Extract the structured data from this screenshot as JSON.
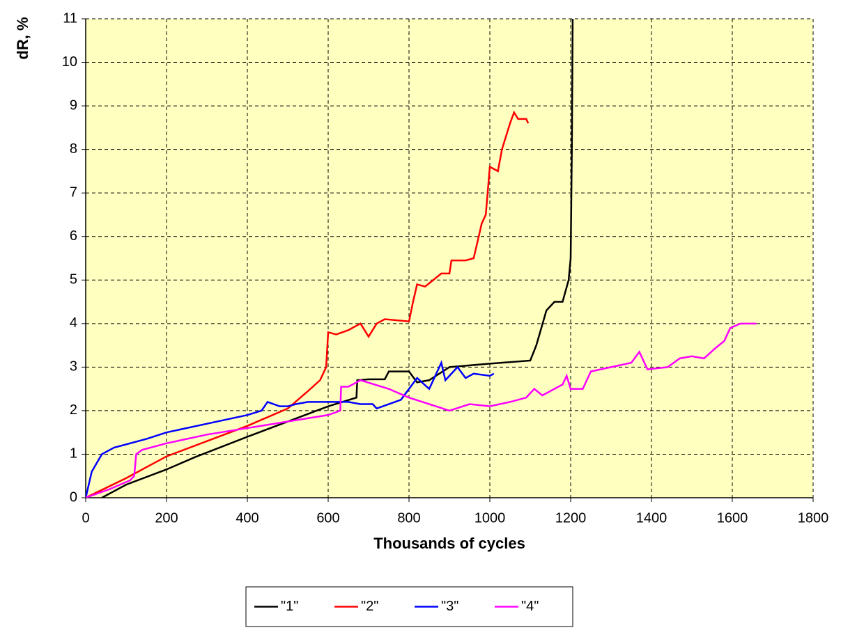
{
  "chart_data": {
    "type": "line",
    "x_label": "Thousands of cycles",
    "y_label": "dR, %",
    "xlim": [
      0,
      1800
    ],
    "xticks": [
      0,
      200,
      400,
      600,
      800,
      1000,
      1200,
      1400,
      1600,
      1800
    ],
    "ylim": [
      0,
      11
    ],
    "yticks": [
      0,
      1,
      2,
      3,
      4,
      5,
      6,
      7,
      8,
      9,
      10,
      11
    ],
    "grid": true,
    "legend": "bottom",
    "series": [
      {
        "name": "\"1\"",
        "color": "#000000",
        "x": [
          40,
          100,
          200,
          270,
          400,
          500,
          600,
          670,
          672,
          700,
          740,
          750,
          800,
          820,
          850,
          900,
          1000,
          1100,
          1115,
          1140,
          1160,
          1180,
          1195,
          1200,
          1203,
          1205
        ],
        "values": [
          0,
          0.3,
          0.65,
          0.93,
          1.4,
          1.75,
          2.1,
          2.3,
          2.7,
          2.72,
          2.72,
          2.9,
          2.9,
          2.65,
          2.7,
          3.0,
          3.08,
          3.15,
          3.5,
          4.3,
          4.5,
          4.5,
          5.0,
          5.5,
          8,
          11
        ]
      },
      {
        "name": "\"2\"",
        "color": "#ff0000",
        "x": [
          0,
          100,
          200,
          300,
          400,
          500,
          550,
          580,
          595,
          600,
          620,
          650,
          680,
          700,
          720,
          740,
          800,
          810,
          820,
          840,
          860,
          880,
          900,
          905,
          940,
          960,
          980,
          990,
          1000,
          1020,
          1030,
          1050,
          1060,
          1070,
          1090,
          1095
        ],
        "values": [
          0,
          0.45,
          0.95,
          1.3,
          1.65,
          2.05,
          2.45,
          2.7,
          3.0,
          3.8,
          3.75,
          3.85,
          4.0,
          3.7,
          4.0,
          4.1,
          4.05,
          4.5,
          4.9,
          4.85,
          5.0,
          5.15,
          5.15,
          5.45,
          5.45,
          5.5,
          6.3,
          6.5,
          7.6,
          7.5,
          8.0,
          8.6,
          8.85,
          8.7,
          8.7,
          8.6
        ]
      },
      {
        "name": "\"3\"",
        "color": "#0000ff",
        "x": [
          0,
          15,
          40,
          70,
          150,
          200,
          300,
          400,
          435,
          450,
          480,
          500,
          520,
          550,
          650,
          680,
          710,
          720,
          780,
          820,
          850,
          880,
          890,
          920,
          940,
          960,
          1000,
          1010
        ],
        "values": [
          0,
          0.6,
          1.0,
          1.15,
          1.35,
          1.5,
          1.7,
          1.9,
          2.0,
          2.2,
          2.1,
          2.1,
          2.15,
          2.2,
          2.2,
          2.15,
          2.15,
          2.05,
          2.25,
          2.75,
          2.5,
          3.1,
          2.7,
          3.0,
          2.75,
          2.85,
          2.8,
          2.85
        ]
      },
      {
        "name": "\"4\"",
        "color": "#ff00ff",
        "x": [
          0,
          60,
          110,
          120,
          125,
          140,
          200,
          300,
          400,
          500,
          600,
          630,
          632,
          650,
          680,
          750,
          800,
          900,
          950,
          1000,
          1050,
          1090,
          1110,
          1130,
          1180,
          1190,
          1200,
          1230,
          1250,
          1300,
          1350,
          1370,
          1390,
          1440,
          1470,
          1500,
          1530,
          1560,
          1580,
          1595,
          1620,
          1660
        ],
        "values": [
          0,
          0.2,
          0.4,
          0.5,
          1.0,
          1.1,
          1.25,
          1.45,
          1.6,
          1.75,
          1.9,
          2.0,
          2.55,
          2.55,
          2.7,
          2.5,
          2.3,
          2.0,
          2.15,
          2.1,
          2.2,
          2.3,
          2.5,
          2.35,
          2.6,
          2.8,
          2.5,
          2.5,
          2.9,
          3.0,
          3.1,
          3.35,
          2.95,
          3.0,
          3.2,
          3.25,
          3.2,
          3.45,
          3.6,
          3.9,
          4.0,
          4.0
        ]
      }
    ]
  }
}
